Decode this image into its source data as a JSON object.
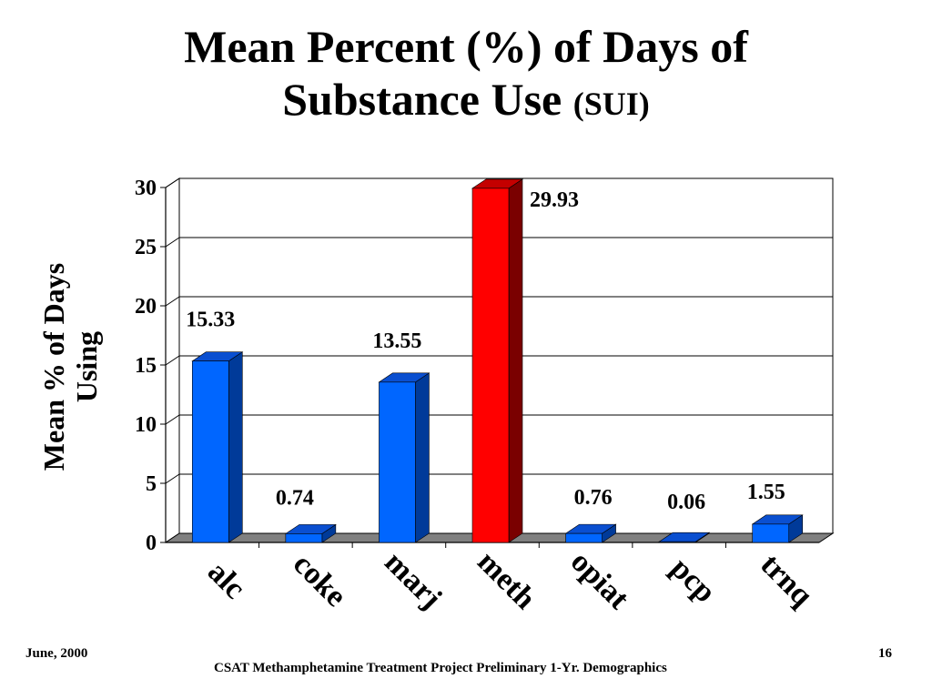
{
  "slide": {
    "title_line1": "Mean Percent (%) of Days of",
    "title_line2": "Substance Use",
    "title_suffix": "(SUI)",
    "footer_date": "June, 2000",
    "footer_page": "16",
    "footer_caption": "CSAT Methamphetamine Treatment Project Preliminary 1-Yr. Demographics"
  },
  "chart_data": {
    "type": "bar",
    "title": "",
    "ylabel_line1": "Mean % of Days",
    "ylabel_line2": "Using",
    "xlabel": "",
    "categories": [
      "alc",
      "coke",
      "marj",
      "meth",
      "opiat",
      "pcp",
      "trnq"
    ],
    "values": [
      15.33,
      0.74,
      13.55,
      29.93,
      0.76,
      0.06,
      1.55
    ],
    "data_labels": [
      "15.33",
      "0.74",
      "13.55",
      "29.93",
      "0.76",
      "0.06",
      "1.55"
    ],
    "ylim": [
      0,
      30
    ],
    "yticks": [
      0,
      5,
      10,
      15,
      20,
      25,
      30
    ],
    "grid": true,
    "legend": "none",
    "style": "3d",
    "colors": {
      "bar": "#0066ff",
      "bar_side": "#003a99",
      "bar_top": "#0a4fd0",
      "highlight": "#ff0000",
      "highlight_side": "#7a0000",
      "highlight_top": "#c40000",
      "floor": "#808080",
      "gridline": "#000000"
    },
    "highlight_category": "meth"
  }
}
